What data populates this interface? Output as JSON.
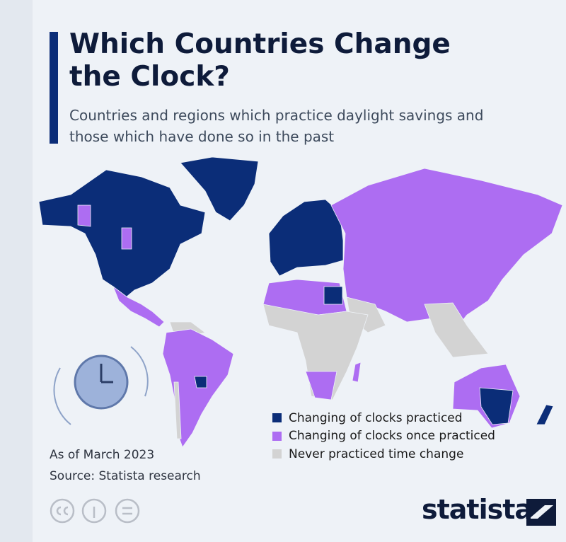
{
  "header": {
    "title": "Which Countries Change the Clock?",
    "subtitle": "Countries and regions which practice daylight savings and those which have done so in the past"
  },
  "legend": [
    {
      "label": "Changing of clocks practiced",
      "color": "#0b2d78"
    },
    {
      "label": "Changing of clocks once practiced",
      "color": "#ad6df2"
    },
    {
      "label": "Never practiced time change",
      "color": "#d3d3d3"
    }
  ],
  "notes": {
    "date": "As of March 2023",
    "source": "Source: Statista research"
  },
  "brand": "statista"
}
